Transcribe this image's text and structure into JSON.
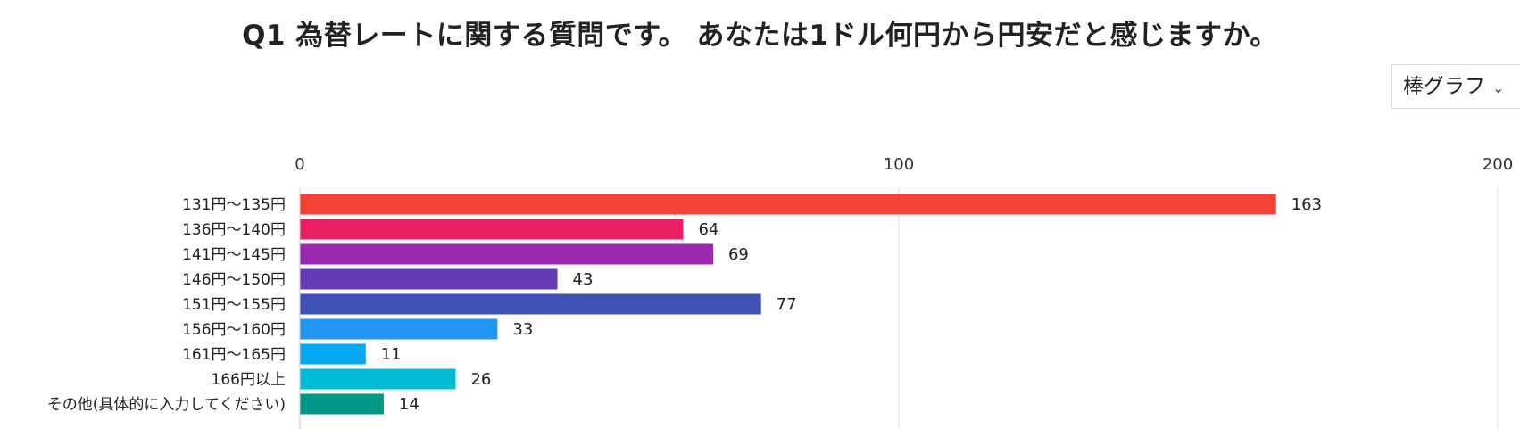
{
  "title": "Q1 為替レートに関する質問です。 あなたは1ドル何円から円安だと感じますか。",
  "chart_type_select": {
    "selected": "棒グラフ"
  },
  "chart_data": {
    "type": "bar",
    "orientation": "horizontal",
    "xlim": [
      0,
      200
    ],
    "x_ticks": [
      0,
      100,
      200
    ],
    "x_axis_position": "top",
    "grid": true,
    "data_labels": true,
    "categories": [
      "131円～135円",
      "136円～140円",
      "141円～145円",
      "146円～150円",
      "151円～155円",
      "156円～160円",
      "161円～165円",
      "166円以上",
      "その他(具体的に入力してください)"
    ],
    "values": [
      163,
      64,
      69,
      43,
      77,
      33,
      11,
      26,
      14
    ],
    "colors": [
      "#f44336",
      "#e91e63",
      "#9c27b0",
      "#673ab7",
      "#3f51b5",
      "#2196f3",
      "#03a9f4",
      "#00bcd4",
      "#009688"
    ]
  }
}
